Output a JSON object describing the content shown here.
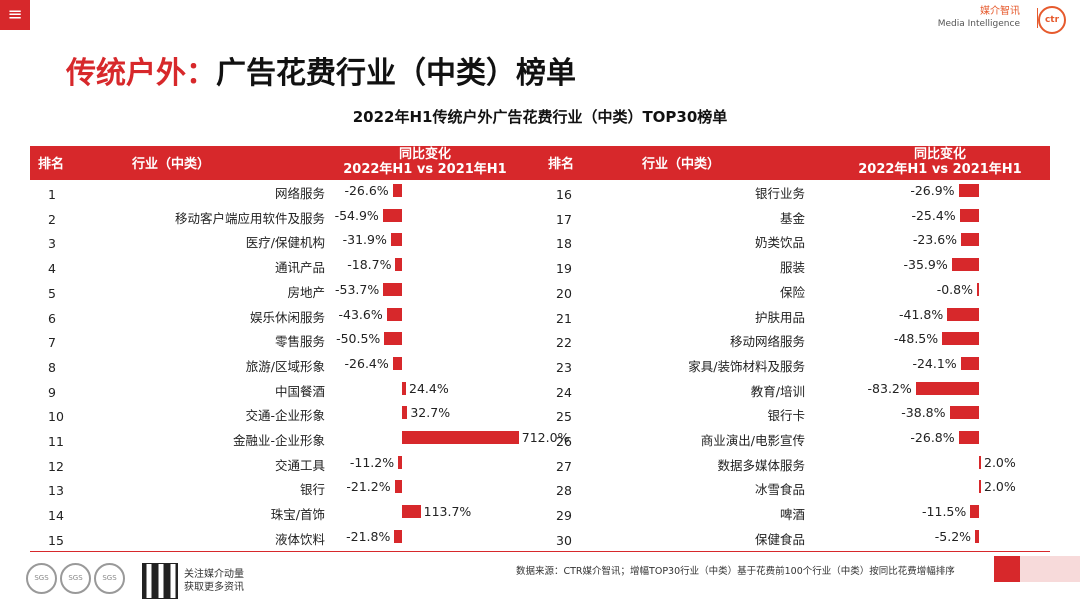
{
  "header": {
    "menu_icon": "≡",
    "brand_cn": "媒介智讯",
    "brand_en": "Media Intelligence",
    "logo_text": "ctr"
  },
  "title": {
    "part1": "传统户外：",
    "part2": "广告花费行业（中类）榜单"
  },
  "subtitle": "2022年H1传统户外广告花费行业（中类）TOP30榜单",
  "table_header": {
    "rank": "排名",
    "industry": "行业（中类）",
    "change_line1": "同比变化",
    "change_line2": "2022年H1 vs 2021年H1"
  },
  "chart_data": {
    "type": "bar",
    "title": "2022年H1传统户外广告花费行业（中类）TOP30榜单",
    "ylabel": "同比变化 2022年H1 vs 2021年H1",
    "left": [
      {
        "rank": "1",
        "name": "网络服务",
        "label": "-26.6%",
        "value": -26.6
      },
      {
        "rank": "2",
        "name": "移动客户端应用软件及服务",
        "label": "-54.9%",
        "value": -54.9
      },
      {
        "rank": "3",
        "name": "医疗/保健机构",
        "label": "-31.9%",
        "value": -31.9
      },
      {
        "rank": "4",
        "name": "通讯产品",
        "label": "-18.7%",
        "value": -18.7
      },
      {
        "rank": "5",
        "name": "房地产",
        "label": "-53.7%",
        "value": -53.7
      },
      {
        "rank": "6",
        "name": "娱乐休闲服务",
        "label": "-43.6%",
        "value": -43.6
      },
      {
        "rank": "7",
        "name": "零售服务",
        "label": "-50.5%",
        "value": -50.5
      },
      {
        "rank": "8",
        "name": "旅游/区域形象",
        "label": "-26.4%",
        "value": -26.4
      },
      {
        "rank": "9",
        "name": "中国餐酒",
        "label": "24.4%",
        "value": 24.4
      },
      {
        "rank": "10",
        "name": "交通-企业形象",
        "label": "32.7%",
        "value": 32.7
      },
      {
        "rank": "11",
        "name": "金融业-企业形象",
        "label": "712.0%",
        "value": 712.0
      },
      {
        "rank": "12",
        "name": "交通工具",
        "label": "-11.2%",
        "value": -11.2
      },
      {
        "rank": "13",
        "name": "银行",
        "label": "-21.2%",
        "value": -21.2
      },
      {
        "rank": "14",
        "name": "珠宝/首饰",
        "label": "113.7%",
        "value": 113.7
      },
      {
        "rank": "15",
        "name": "液体饮料",
        "label": "-21.8%",
        "value": -21.8
      }
    ],
    "right": [
      {
        "rank": "16",
        "name": "银行业务",
        "label": "-26.9%",
        "value": -26.9
      },
      {
        "rank": "17",
        "name": "基金",
        "label": "-25.4%",
        "value": -25.4
      },
      {
        "rank": "18",
        "name": "奶类饮品",
        "label": "-23.6%",
        "value": -23.6
      },
      {
        "rank": "19",
        "name": "服装",
        "label": "-35.9%",
        "value": -35.9
      },
      {
        "rank": "20",
        "name": "保险",
        "label": "-0.8%",
        "value": -0.8
      },
      {
        "rank": "21",
        "name": "护肤用品",
        "label": "-41.8%",
        "value": -41.8
      },
      {
        "rank": "22",
        "name": "移动网络服务",
        "label": "-48.5%",
        "value": -48.5
      },
      {
        "rank": "23",
        "name": "家具/装饰材料及服务",
        "label": "-24.1%",
        "value": -24.1
      },
      {
        "rank": "24",
        "name": "教育/培训",
        "label": "-83.2%",
        "value": -83.2
      },
      {
        "rank": "25",
        "name": "银行卡",
        "label": "-38.8%",
        "value": -38.8
      },
      {
        "rank": "26",
        "name": "商业演出/电影宣传",
        "label": "-26.8%",
        "value": -26.8
      },
      {
        "rank": "27",
        "name": "数据多媒体服务",
        "label": "2.0%",
        "value": 2.0
      },
      {
        "rank": "28",
        "name": "冰雪食品",
        "label": "2.0%",
        "value": 2.0
      },
      {
        "rank": "29",
        "name": "啤酒",
        "label": "-11.5%",
        "value": -11.5
      },
      {
        "rank": "30",
        "name": "保健食品",
        "label": "-5.2%",
        "value": -5.2
      }
    ]
  },
  "footer": {
    "badges": [
      "SGS",
      "SGS",
      "SGS"
    ],
    "follow_line1": "关注媒介动量",
    "follow_line2": "获取更多资讯",
    "source": "数据来源：CTR媒介智讯；增幅TOP30行业（中类）基于花费前100个行业（中类）按同比花费增幅排序"
  },
  "colors": {
    "accent": "#d7282b"
  }
}
